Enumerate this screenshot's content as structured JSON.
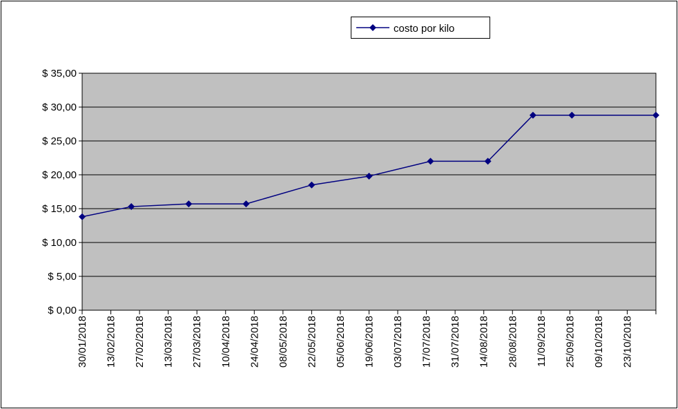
{
  "chart_data": {
    "type": "line",
    "x": [
      "30/01/2018",
      "23/02/2018",
      "23/03/2018",
      "20/04/2018",
      "22/05/2018",
      "19/06/2018",
      "19/07/2018",
      "16/08/2018",
      "07/09/2018",
      "26/09/2018",
      "06/11/2018"
    ],
    "series": [
      {
        "name": "costo por kilo",
        "color": "#000080",
        "values": [
          13.8,
          15.3,
          15.7,
          15.7,
          18.5,
          19.8,
          22.0,
          22.0,
          28.8,
          28.8,
          28.8
        ]
      }
    ],
    "xlim": [
      "30/01/2018",
      "06/11/2018"
    ],
    "xticks": [
      "30/01/2018",
      "13/02/2018",
      "27/02/2018",
      "13/03/2018",
      "27/03/2018",
      "10/04/2018",
      "24/04/2018",
      "08/05/2018",
      "22/05/2018",
      "05/06/2018",
      "19/06/2018",
      "03/07/2018",
      "17/07/2018",
      "31/07/2018",
      "14/08/2018",
      "28/08/2018",
      "11/09/2018",
      "25/09/2018",
      "09/10/2018",
      "23/10/2018"
    ],
    "ylim": [
      0,
      35
    ],
    "yticks": [
      {
        "value": 0,
        "label": "$ 0,00"
      },
      {
        "value": 5,
        "label": "$ 5,00"
      },
      {
        "value": 10,
        "label": "$ 10,00"
      },
      {
        "value": 15,
        "label": "$ 15,00"
      },
      {
        "value": 20,
        "label": "$ 20,00"
      },
      {
        "value": 25,
        "label": "$ 25,00"
      },
      {
        "value": 30,
        "label": "$ 30,00"
      },
      {
        "value": 35,
        "label": "$ 35,00"
      }
    ],
    "grid": true,
    "legend": "top"
  }
}
